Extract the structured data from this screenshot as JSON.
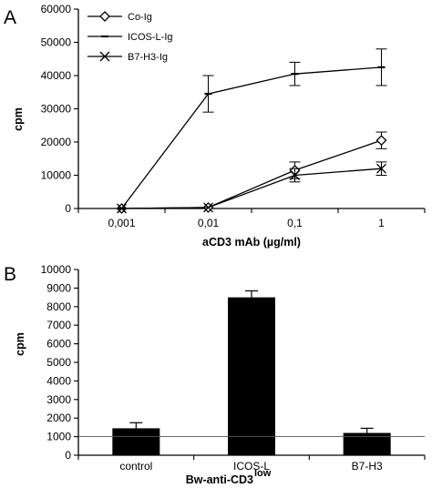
{
  "chart_data": [
    {
      "type": "line",
      "panel_label": "A",
      "x": [
        "0,001",
        "0,01",
        "0,1",
        "1"
      ],
      "xlabel": "aCD3 mAb (µg/ml)",
      "ylabel": "cpm",
      "ylim": [
        0,
        60000
      ],
      "yticks": [
        "0",
        "10000",
        "20000",
        "30000",
        "40000",
        "50000",
        "60000"
      ],
      "legend_position": "top-left",
      "series": [
        {
          "name": "Co-Ig",
          "marker": "diamond",
          "values": [
            0,
            300,
            11500,
            20500
          ],
          "errors": [
            0,
            0,
            2500,
            2500
          ]
        },
        {
          "name": "ICOS-L-Ig",
          "marker": "dash",
          "values": [
            0,
            34500,
            40500,
            42500
          ],
          "errors": [
            0,
            5500,
            3500,
            5500
          ]
        },
        {
          "name": "B7-H3-Ig",
          "marker": "x",
          "values": [
            0,
            300,
            10000,
            12000
          ],
          "errors": [
            0,
            0,
            2000,
            2000
          ]
        }
      ]
    },
    {
      "type": "bar",
      "panel_label": "B",
      "categories": [
        "control",
        "ICOS-L",
        "B7-H3"
      ],
      "values": [
        1450,
        8500,
        1200
      ],
      "errors": [
        300,
        350,
        250
      ],
      "xlabel_main": "Bw-anti-CD3",
      "xlabel_sup": "low",
      "ylabel": "cpm",
      "ylim": [
        0,
        10000
      ],
      "yticks": [
        "0",
        "1000",
        "2000",
        "3000",
        "4000",
        "5000",
        "6000",
        "7000",
        "8000",
        "9000",
        "10000"
      ],
      "reference_line": 1000,
      "bar_color": "#000000"
    }
  ]
}
